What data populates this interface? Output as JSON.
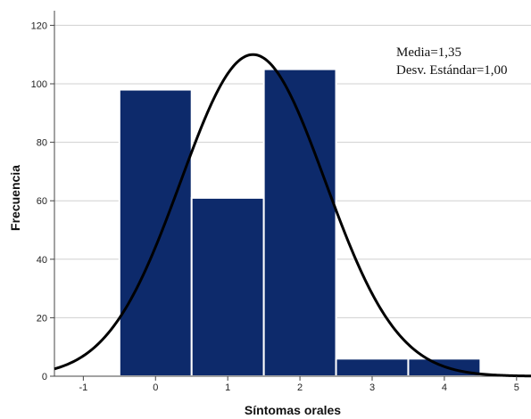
{
  "chart_data": {
    "type": "bar",
    "title": "",
    "xlabel": "Síntomas orales",
    "ylabel": "Frecuencia",
    "categories": [
      "0",
      "1",
      "2",
      "3",
      "4"
    ],
    "x_values": [
      0,
      1,
      2,
      3,
      4
    ],
    "values": [
      98,
      61,
      105,
      6,
      6
    ],
    "xlim": [
      -1.4,
      5.2
    ],
    "ylim": [
      0,
      125
    ],
    "x_ticks": [
      "-1",
      "0",
      "1",
      "2",
      "3",
      "4",
      "5"
    ],
    "y_ticks": [
      "0",
      "20",
      "40",
      "60",
      "80",
      "100",
      "120"
    ],
    "grid": true,
    "normal_curve": {
      "mean": 1.35,
      "std": 1.0,
      "peak": 110
    },
    "annotations": {
      "mean_label": "Media=1,35",
      "std_label": "Desv. Estándar=1,00"
    },
    "colors": {
      "bar_fill": "#0d2a6b",
      "bar_stroke": "#ffffff",
      "curve": "#000000",
      "grid": "#d0d0d0",
      "axis": "#444444"
    }
  }
}
